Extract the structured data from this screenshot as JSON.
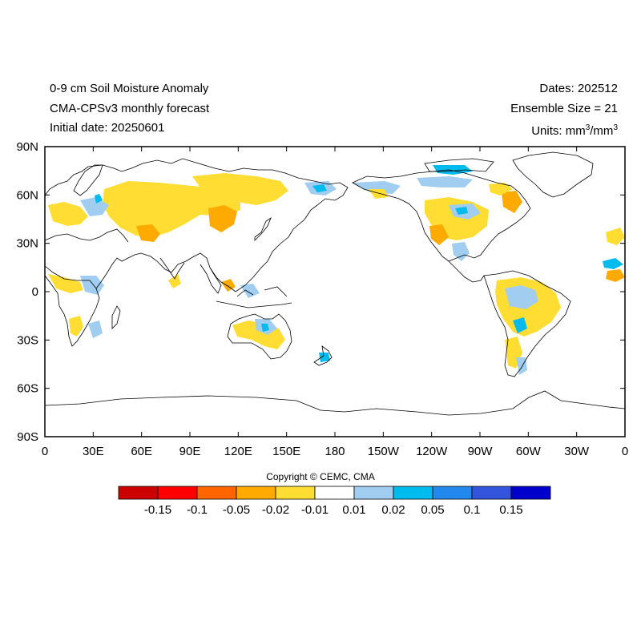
{
  "header": {
    "title": "0-9 cm Soil Moisture Anomaly",
    "model": "CMA-CPSv3 monthly forecast",
    "initial_date": "Initial date: 20250601",
    "dates": "Dates: 202512",
    "ensemble": "Ensemble Size = 21",
    "units_prefix": "Units: mm",
    "units_sup1": "3",
    "units_mid": "/mm",
    "units_sup2": "3"
  },
  "axes": {
    "lat_labels": [
      "90N",
      "60N",
      "30N",
      "0",
      "30S",
      "60S",
      "90S"
    ],
    "lon_labels": [
      "0",
      "30E",
      "60E",
      "90E",
      "120E",
      "150E",
      "180",
      "150W",
      "120W",
      "90W",
      "60W",
      "30W",
      "0"
    ]
  },
  "copyright": "Copyright © CEMC, CMA",
  "colorbar": {
    "colors": [
      "#cc0000",
      "#ff0000",
      "#ff6600",
      "#ffaa00",
      "#ffdd33",
      "#ffffff",
      "#a0cdf0",
      "#00bbee",
      "#2288ee",
      "#3355dd",
      "#0000cc"
    ],
    "labels": [
      "-0.15",
      "-0.1",
      "-0.05",
      "-0.02",
      "-0.01",
      "0.01",
      "0.02",
      "0.05",
      "0.1",
      "0.15"
    ]
  },
  "colors": {
    "dry_strong": "#ff6600",
    "dry": "#ffaa00",
    "dry_weak": "#ffdd33",
    "wet_weak": "#a0cdf0",
    "wet": "#00bbee",
    "wet_strong": "#2288ee"
  }
}
